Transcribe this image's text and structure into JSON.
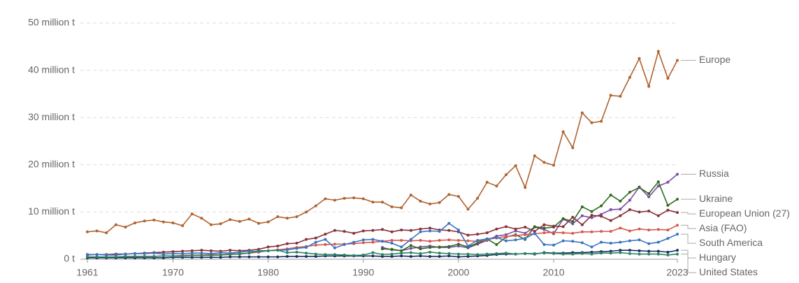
{
  "chart_data": {
    "type": "line",
    "x": [
      1961,
      1962,
      1963,
      1964,
      1965,
      1966,
      1967,
      1968,
      1969,
      1970,
      1971,
      1972,
      1973,
      1974,
      1975,
      1976,
      1977,
      1978,
      1979,
      1980,
      1981,
      1982,
      1983,
      1984,
      1985,
      1986,
      1987,
      1988,
      1989,
      1990,
      1991,
      1992,
      1993,
      1994,
      1995,
      1996,
      1997,
      1998,
      1999,
      2000,
      2001,
      2002,
      2003,
      2004,
      2005,
      2006,
      2007,
      2008,
      2009,
      2010,
      2011,
      2012,
      2013,
      2014,
      2015,
      2016,
      2017,
      2018,
      2019,
      2020,
      2021,
      2022,
      2023
    ],
    "xlim": [
      1961,
      2023
    ],
    "xticks": [
      1961,
      1970,
      1980,
      1990,
      2000,
      2010,
      2023
    ],
    "ylim": [
      0,
      50
    ],
    "yticks": [
      {
        "value": 0,
        "label": "0 t"
      },
      {
        "value": 10,
        "label": "10 million t"
      },
      {
        "value": 20,
        "label": "20 million t"
      },
      {
        "value": 30,
        "label": "30 million t"
      },
      {
        "value": 40,
        "label": "40 million t"
      },
      {
        "value": 50,
        "label": "50 million t"
      }
    ],
    "grid": true,
    "series": [
      {
        "name": "Europe",
        "color": "#b0622f",
        "values": [
          5.8,
          6.0,
          5.6,
          7.3,
          6.8,
          7.7,
          8.1,
          8.3,
          7.9,
          7.7,
          7.1,
          9.6,
          8.7,
          7.3,
          7.5,
          8.4,
          8.0,
          8.5,
          7.6,
          7.9,
          9.0,
          8.7,
          9.0,
          10.0,
          11.3,
          12.8,
          12.5,
          12.9,
          13.0,
          12.8,
          12.1,
          12.1,
          11.1,
          10.9,
          13.6,
          12.3,
          11.7,
          12.0,
          13.7,
          13.3,
          10.6,
          12.9,
          16.3,
          15.5,
          17.9,
          19.8,
          15.2,
          21.9,
          20.5,
          19.9,
          27.0,
          23.6,
          31.0,
          28.9,
          29.2,
          34.7,
          34.5,
          38.5,
          42.5,
          36.6,
          44.0,
          38.3,
          42.1
        ]
      },
      {
        "name": "Russia",
        "color": "#7b4ba3",
        "values": [
          null,
          null,
          null,
          null,
          null,
          null,
          null,
          null,
          null,
          null,
          null,
          null,
          null,
          null,
          null,
          null,
          null,
          null,
          null,
          null,
          null,
          null,
          null,
          null,
          null,
          null,
          null,
          null,
          null,
          null,
          null,
          2.5,
          2.0,
          1.8,
          2.3,
          2.6,
          2.8,
          2.5,
          2.5,
          2.8,
          2.4,
          3.2,
          4.0,
          4.9,
          5.2,
          6.0,
          5.5,
          6.8,
          6.3,
          5.4,
          8.5,
          7.5,
          9.2,
          8.8,
          9.5,
          10.5,
          10.6,
          12.5,
          15.3,
          13.2,
          15.5,
          16.3,
          18.0
        ]
      },
      {
        "name": "Ukraine",
        "color": "#2f6b1b",
        "values": [
          null,
          null,
          null,
          null,
          null,
          null,
          null,
          null,
          null,
          null,
          null,
          null,
          null,
          null,
          null,
          null,
          null,
          null,
          null,
          null,
          null,
          null,
          null,
          null,
          null,
          null,
          null,
          null,
          null,
          null,
          null,
          2.2,
          2.1,
          1.8,
          2.9,
          2.2,
          2.5,
          2.6,
          2.7,
          3.2,
          2.6,
          3.4,
          4.3,
          3.1,
          4.7,
          5.2,
          4.2,
          6.9,
          6.6,
          6.8,
          8.6,
          8.0,
          11.1,
          10.1,
          11.3,
          13.6,
          12.3,
          14.2,
          15.2,
          13.9,
          16.4,
          11.4,
          12.7
        ]
      },
      {
        "name": "European Union (27)",
        "color": "#883039",
        "values": [
          1.0,
          1.0,
          1.0,
          1.1,
          1.1,
          1.2,
          1.3,
          1.4,
          1.5,
          1.6,
          1.7,
          1.8,
          1.9,
          1.8,
          1.7,
          1.9,
          1.8,
          1.9,
          2.1,
          2.6,
          2.8,
          3.3,
          3.4,
          4.2,
          4.5,
          5.3,
          6.1,
          5.9,
          5.5,
          6.0,
          6.1,
          6.3,
          5.8,
          6.2,
          6.1,
          6.4,
          6.6,
          6.2,
          6.1,
          5.8,
          5.1,
          5.3,
          5.6,
          6.4,
          6.9,
          6.4,
          6.8,
          5.9,
          7.3,
          7.0,
          6.9,
          8.9,
          7.3,
          9.3,
          9.1,
          8.2,
          9.2,
          10.5,
          10.0,
          10.2,
          9.2,
          10.4,
          9.9
        ]
      },
      {
        "name": "Asia (FAO)",
        "color": "#d6584f",
        "values": [
          0.3,
          0.3,
          0.4,
          0.4,
          0.5,
          0.5,
          0.6,
          0.6,
          0.7,
          0.7,
          0.8,
          0.9,
          0.9,
          1.0,
          1.0,
          1.1,
          1.2,
          1.3,
          1.5,
          1.8,
          2.0,
          2.2,
          2.5,
          2.7,
          3.0,
          3.1,
          3.2,
          3.2,
          3.3,
          3.5,
          3.6,
          3.8,
          4.0,
          4.0,
          3.9,
          4.0,
          3.8,
          4.0,
          4.1,
          4.0,
          3.9,
          3.8,
          4.2,
          4.5,
          4.8,
          5.0,
          5.2,
          5.4,
          5.6,
          5.7,
          5.6,
          5.5,
          5.8,
          5.8,
          5.9,
          5.9,
          6.6,
          6.0,
          6.4,
          6.2,
          6.3,
          6.2,
          7.2
        ]
      },
      {
        "name": "South America",
        "color": "#3a73c2",
        "values": [
          0.9,
          1.0,
          0.9,
          0.9,
          1.1,
          1.2,
          1.2,
          1.3,
          1.1,
          1.2,
          1.2,
          1.3,
          1.3,
          1.2,
          1.4,
          1.3,
          1.5,
          1.7,
          1.6,
          1.8,
          1.9,
          2.0,
          2.3,
          2.5,
          3.6,
          4.2,
          2.4,
          3.1,
          3.6,
          4.1,
          4.2,
          3.8,
          3.4,
          2.6,
          4.2,
          5.8,
          6.0,
          5.9,
          7.6,
          6.2,
          2.8,
          4.0,
          4.3,
          4.6,
          3.9,
          4.1,
          4.4,
          5.5,
          3.1,
          3.0,
          3.9,
          3.8,
          3.5,
          2.6,
          3.6,
          3.4,
          3.6,
          3.9,
          4.1,
          3.3,
          3.6,
          4.4,
          5.3
        ]
      },
      {
        "name": "Hungary",
        "color": "#18305e",
        "values": [
          0.3,
          0.3,
          0.3,
          0.3,
          0.3,
          0.3,
          0.3,
          0.3,
          0.3,
          0.4,
          0.4,
          0.4,
          0.4,
          0.4,
          0.4,
          0.5,
          0.5,
          0.5,
          0.5,
          0.5,
          0.5,
          0.6,
          0.6,
          0.6,
          0.6,
          0.7,
          0.7,
          0.7,
          0.7,
          0.7,
          0.7,
          0.6,
          0.6,
          0.7,
          0.6,
          0.7,
          0.6,
          0.6,
          0.7,
          0.5,
          0.6,
          0.7,
          0.8,
          1.0,
          1.1,
          1.1,
          1.2,
          1.1,
          1.4,
          1.3,
          1.3,
          1.4,
          1.4,
          1.5,
          1.6,
          1.7,
          1.9,
          1.9,
          1.8,
          1.7,
          1.7,
          1.5,
          1.9
        ]
      },
      {
        "name": "United States",
        "color": "#2c8465",
        "values": [
          0.5,
          0.5,
          0.5,
          0.5,
          0.6,
          0.6,
          0.6,
          0.6,
          0.7,
          0.7,
          0.7,
          0.8,
          0.8,
          0.8,
          0.9,
          1.0,
          1.1,
          1.3,
          1.8,
          1.8,
          1.9,
          1.4,
          1.5,
          1.3,
          1.1,
          1.0,
          1.0,
          0.9,
          0.8,
          0.9,
          1.4,
          1.0,
          1.1,
          1.3,
          1.4,
          1.2,
          1.5,
          1.3,
          1.2,
          1.1,
          1.1,
          1.0,
          1.1,
          1.2,
          1.3,
          1.1,
          1.2,
          1.2,
          1.3,
          1.2,
          1.1,
          1.1,
          1.2,
          1.1,
          1.3,
          1.3,
          1.4,
          1.2,
          1.1,
          1.1,
          1.1,
          0.9,
          1.1
        ]
      }
    ]
  }
}
